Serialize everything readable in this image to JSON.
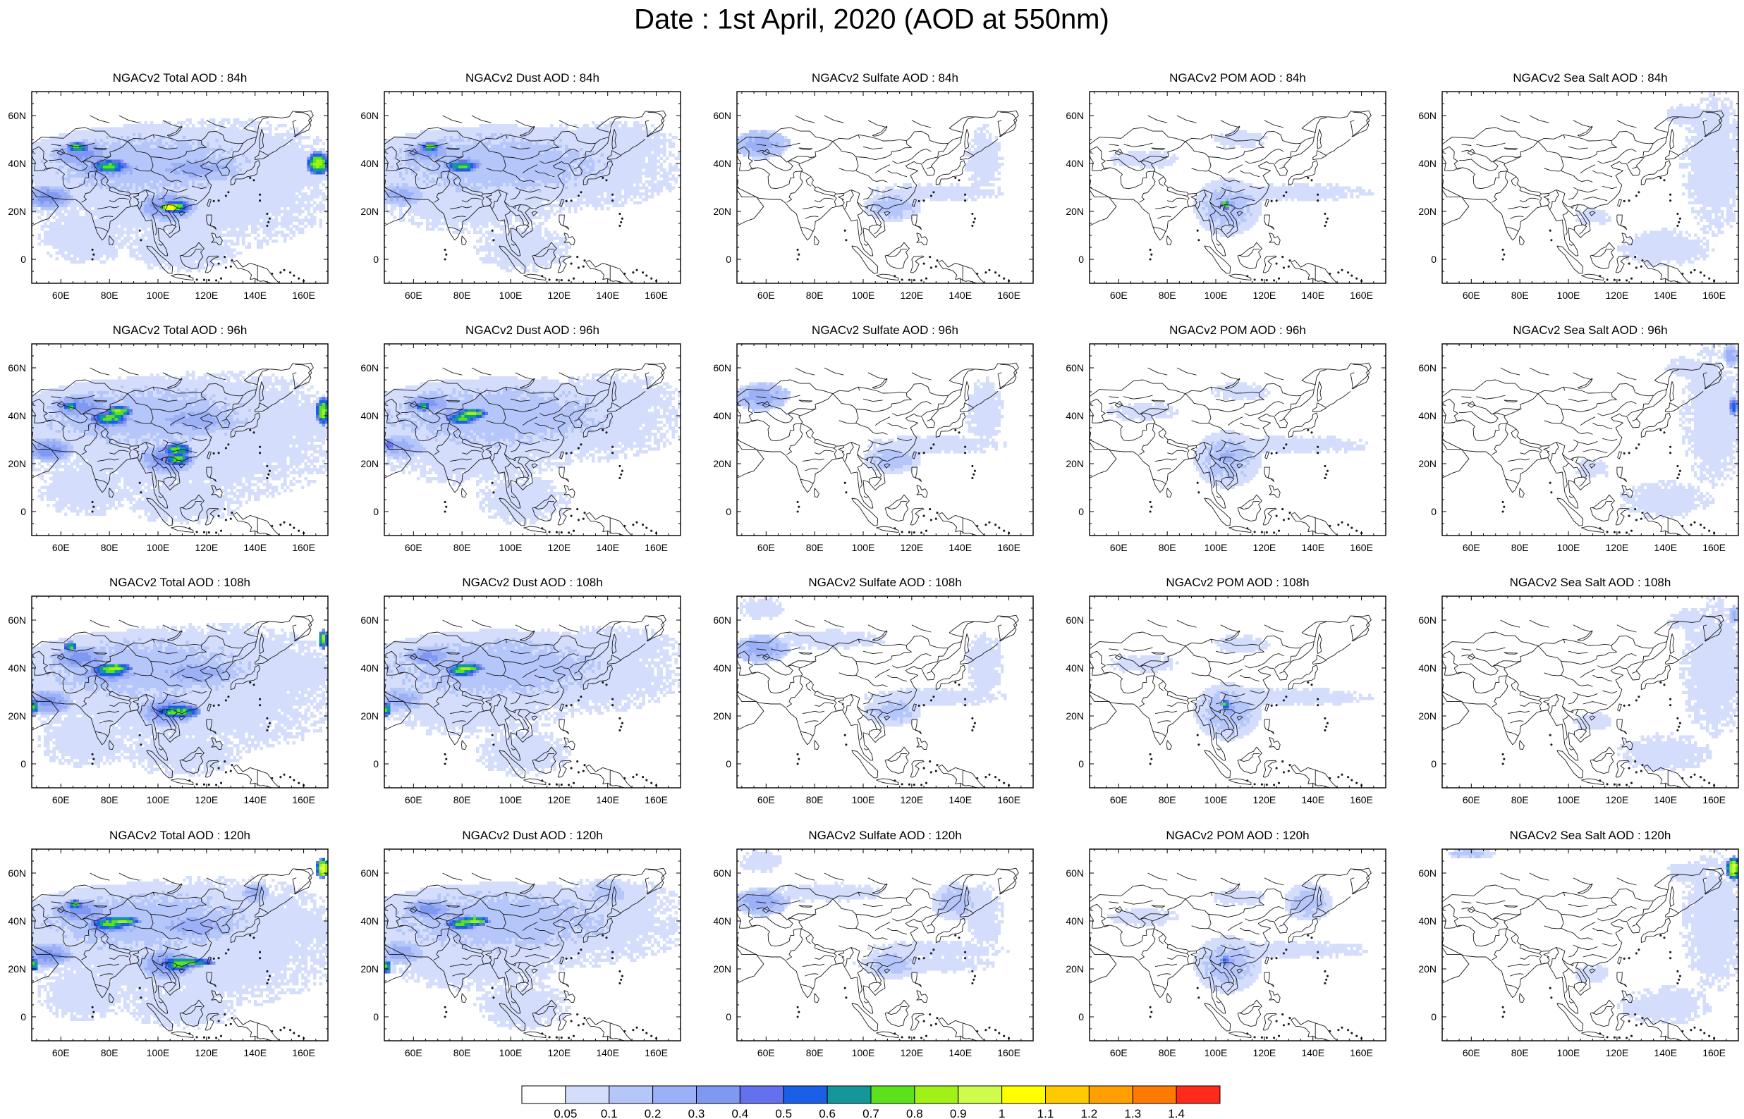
{
  "title": "Date : 1st April, 2020 (AOD at 550nm)",
  "columns": [
    "total",
    "dust",
    "sulfate",
    "pom",
    "seasalt"
  ],
  "rows": [
    "84h",
    "96h",
    "108h",
    "120h"
  ],
  "panel_titles": [
    [
      "NGACv2 Total AOD : 84h",
      "NGACv2 Dust AOD : 84h",
      "NGACv2 Sulfate AOD : 84h",
      "NGACv2 POM AOD : 84h",
      "NGACv2 Sea Salt AOD : 84h"
    ],
    [
      "NGACv2 Total AOD : 96h",
      "NGACv2 Dust AOD : 96h",
      "NGACv2 Sulfate AOD : 96h",
      "NGACv2 POM AOD : 96h",
      "NGACv2 Sea Salt AOD : 96h"
    ],
    [
      "NGACv2 Total AOD : 108h",
      "NGACv2 Dust AOD : 108h",
      "NGACv2 Sulfate AOD : 108h",
      "NGACv2 POM AOD : 108h",
      "NGACv2 Sea Salt AOD : 108h"
    ],
    [
      "NGACv2 Total AOD : 120h",
      "NGACv2 Dust AOD : 120h",
      "NGACv2 Sulfate AOD : 120h",
      "NGACv2 POM AOD : 120h",
      "NGACv2 Sea Salt  AOD : 120h"
    ]
  ],
  "map": {
    "lon_range": [
      48,
      170
    ],
    "lat_range": [
      -10,
      70
    ],
    "x_ticks": [
      60,
      80,
      100,
      120,
      140,
      160
    ],
    "x_tick_labels": [
      "60E",
      "80E",
      "100E",
      "120E",
      "140E",
      "160E"
    ],
    "y_ticks": [
      0,
      20,
      40,
      60
    ],
    "y_tick_labels": [
      "0",
      "20N",
      "40N",
      "60N"
    ]
  },
  "colorbar": {
    "labels": [
      "0.05",
      "0.1",
      "0.2",
      "0.3",
      "0.4",
      "0.5",
      "0.6",
      "0.7",
      "0.8",
      "0.9",
      "1",
      "1.1",
      "1.2",
      "1.3",
      "1.4"
    ],
    "colors": [
      "#ffffff",
      "#d4ddfb",
      "#b5c6fa",
      "#9bb0f6",
      "#7f98f2",
      "#6470ee",
      "#1a5fe8",
      "#14969b",
      "#5be21a",
      "#a0f116",
      "#cffc4a",
      "#ffff00",
      "#ffc900",
      "#ffa000",
      "#ff7a00",
      "#ff2a1a"
    ]
  }
}
